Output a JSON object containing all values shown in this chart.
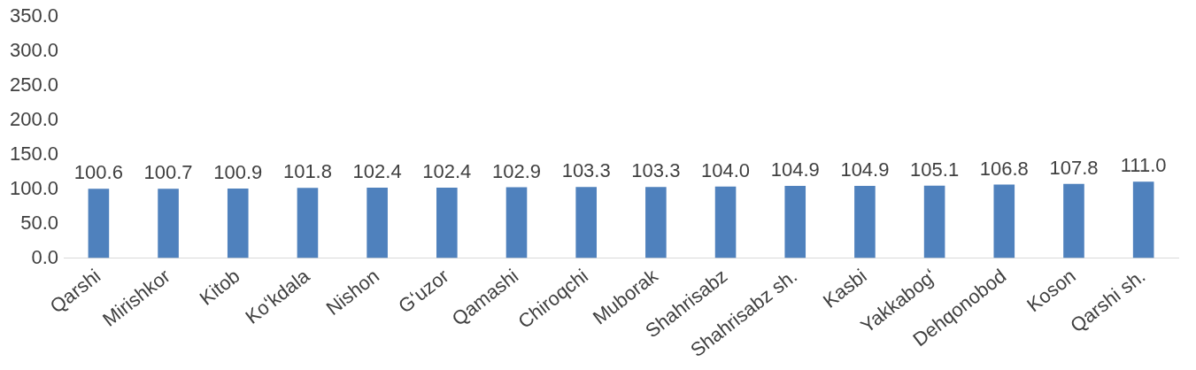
{
  "chart_data": {
    "type": "bar",
    "categories": [
      "Qarshi",
      "Mirishkor",
      "Kitob",
      "Koʻkdala",
      "Nishon",
      "Gʻuzor",
      "Qamashi",
      "Chiroqchi",
      "Muborak",
      "Shahrisabz",
      "Shahrisabz sh.",
      "Kasbi",
      "Yakkabogʻ",
      "Dehqonobod",
      "Koson",
      "Qarshi sh."
    ],
    "values": [
      100.6,
      100.7,
      100.9,
      101.8,
      102.4,
      102.4,
      102.9,
      103.3,
      103.3,
      104.0,
      104.9,
      104.9,
      105.1,
      106.8,
      107.8,
      111.0
    ],
    "value_labels": [
      "100.6",
      "100.7",
      "100.9",
      "101.8",
      "102.4",
      "102.4",
      "102.9",
      "103.3",
      "103.3",
      "104.0",
      "104.9",
      "104.9",
      "105.1",
      "106.8",
      "107.8",
      "111.0"
    ],
    "color": "#4f81bd",
    "ylim": [
      0,
      350
    ],
    "yticks": [
      {
        "value": 0,
        "label": "0.0"
      },
      {
        "value": 50,
        "label": "50.0"
      },
      {
        "value": 100,
        "label": "100.0"
      },
      {
        "value": 150,
        "label": "150.0"
      },
      {
        "value": 200,
        "label": "200.0"
      },
      {
        "value": 250,
        "label": "250.0"
      },
      {
        "value": 300,
        "label": "300.0"
      },
      {
        "value": 350,
        "label": "350.0"
      }
    ],
    "grid": false,
    "legend": false
  }
}
